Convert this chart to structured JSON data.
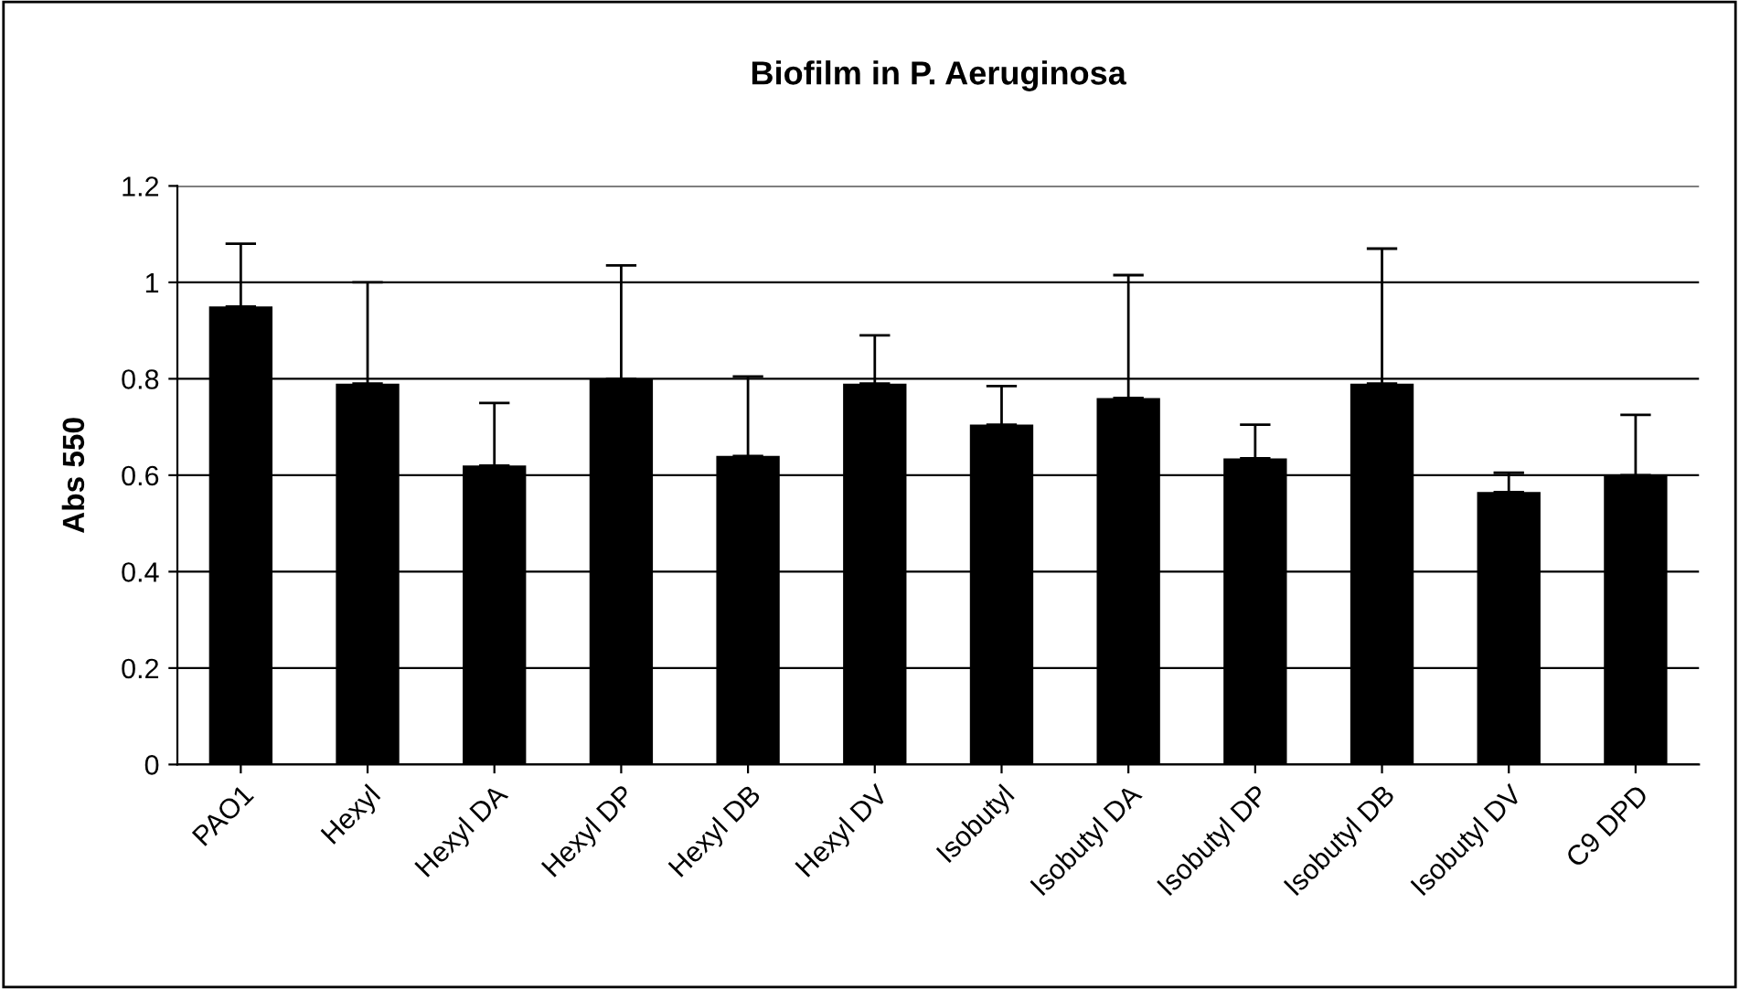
{
  "chart_data": {
    "type": "bar",
    "title": "Biofilm in P. Aeruginosa",
    "ylabel": "Abs 550",
    "categories": [
      "PAO1",
      "Hexyl",
      "Hexyl DA",
      "Hexyl DP",
      "Hexyl DB",
      "Hexyl DV",
      "Isobutyl",
      "Isobutyl DA",
      "Isobutyl DP",
      "Isobutyl DB",
      "Isobutyl DV",
      "C9 DPD"
    ],
    "values": [
      0.95,
      0.79,
      0.62,
      0.8,
      0.64,
      0.79,
      0.705,
      0.76,
      0.635,
      0.79,
      0.565,
      0.6
    ],
    "errors": [
      [
        0.95,
        1.08
      ],
      [
        0.79,
        1.0
      ],
      [
        0.62,
        0.75
      ],
      [
        0.8,
        1.035
      ],
      [
        0.64,
        0.805
      ],
      [
        0.79,
        0.89
      ],
      [
        0.705,
        0.785
      ],
      [
        0.76,
        1.015
      ],
      [
        0.635,
        0.705
      ],
      [
        0.79,
        1.07
      ],
      [
        0.565,
        0.605
      ],
      [
        0.6,
        0.725
      ]
    ],
    "color": "#000000",
    "ylim": [
      0,
      1.2
    ],
    "yticks": [
      0,
      0.2,
      0.4,
      0.6,
      0.8,
      1,
      1.2
    ],
    "grid": "y",
    "legend": false
  }
}
